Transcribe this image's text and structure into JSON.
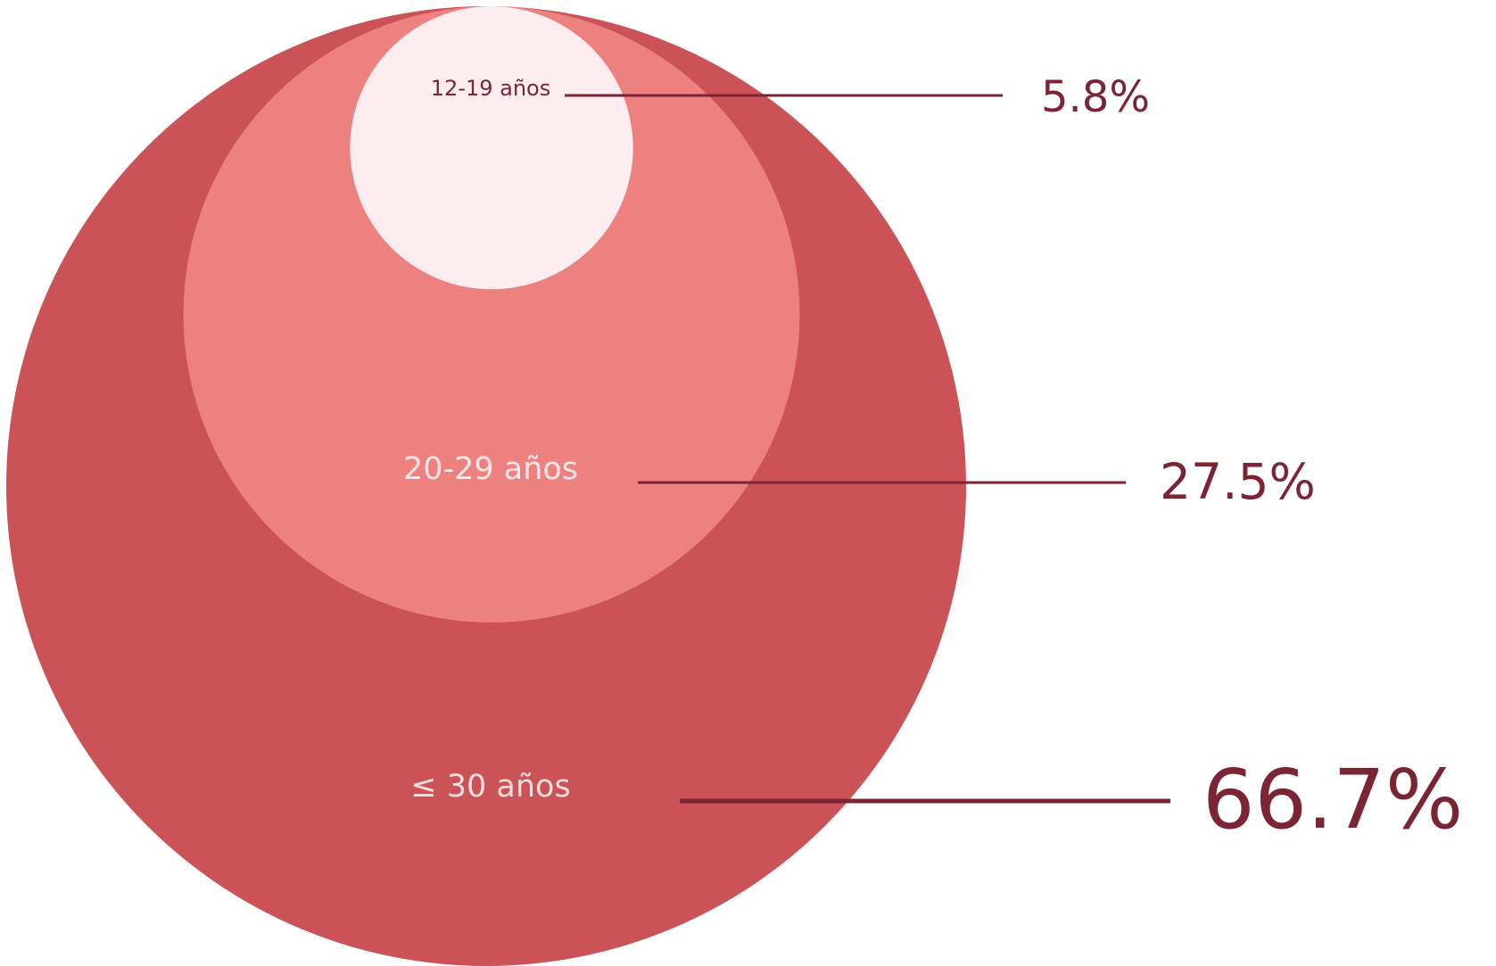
{
  "chart_data": {
    "type": "nested-bubble",
    "title": "",
    "series": [
      {
        "category": "≤ 30 años",
        "value": 66.7,
        "value_label": "66.7%",
        "color": "#CB5357",
        "label_color": "#F6DDDE"
      },
      {
        "category": "20-29 años",
        "value": 27.5,
        "value_label": "27.5%",
        "color": "#EC817F",
        "label_color": "#FBE6E6"
      },
      {
        "category": "12-19 años",
        "value": 5.8,
        "value_label": "5.8%",
        "color": "#FDEDF0",
        "label_color": "#7A2434"
      }
    ],
    "leader_line_color": "#7A2434",
    "value_label_color": "#7A2434"
  }
}
